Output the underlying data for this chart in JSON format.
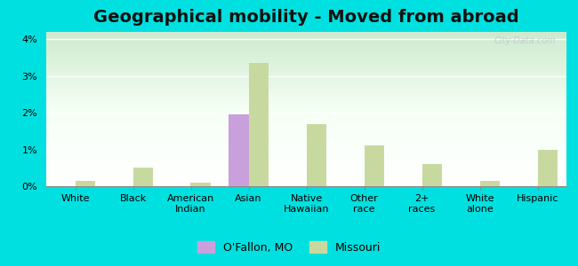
{
  "title": "Geographical mobility - Moved from abroad",
  "categories": [
    "White",
    "Black",
    "American\nIndian",
    "Asian",
    "Native\nHawaiian",
    "Other\nrace",
    "2+\nraces",
    "White\nalone",
    "Hispanic"
  ],
  "ofallon_values": [
    0.0,
    0.0,
    0.0,
    1.95,
    0.0,
    0.0,
    0.0,
    0.0,
    0.0
  ],
  "missouri_values": [
    0.15,
    0.5,
    0.1,
    3.35,
    1.7,
    1.1,
    0.6,
    0.15,
    1.0
  ],
  "ofallon_color": "#c9a0dc",
  "missouri_color": "#c8d9a0",
  "ylim": [
    0,
    4.2
  ],
  "yticks": [
    0,
    1,
    2,
    3,
    4
  ],
  "ytick_labels": [
    "0%",
    "1%",
    "2%",
    "3%",
    "4%"
  ],
  "bar_width": 0.35,
  "legend_ofallon": "O'Fallon, MO",
  "legend_missouri": "Missouri",
  "watermark": "City-Data.com",
  "title_fontsize": 14,
  "tick_fontsize": 8,
  "legend_fontsize": 9,
  "outer_bg": "#00e0e0"
}
